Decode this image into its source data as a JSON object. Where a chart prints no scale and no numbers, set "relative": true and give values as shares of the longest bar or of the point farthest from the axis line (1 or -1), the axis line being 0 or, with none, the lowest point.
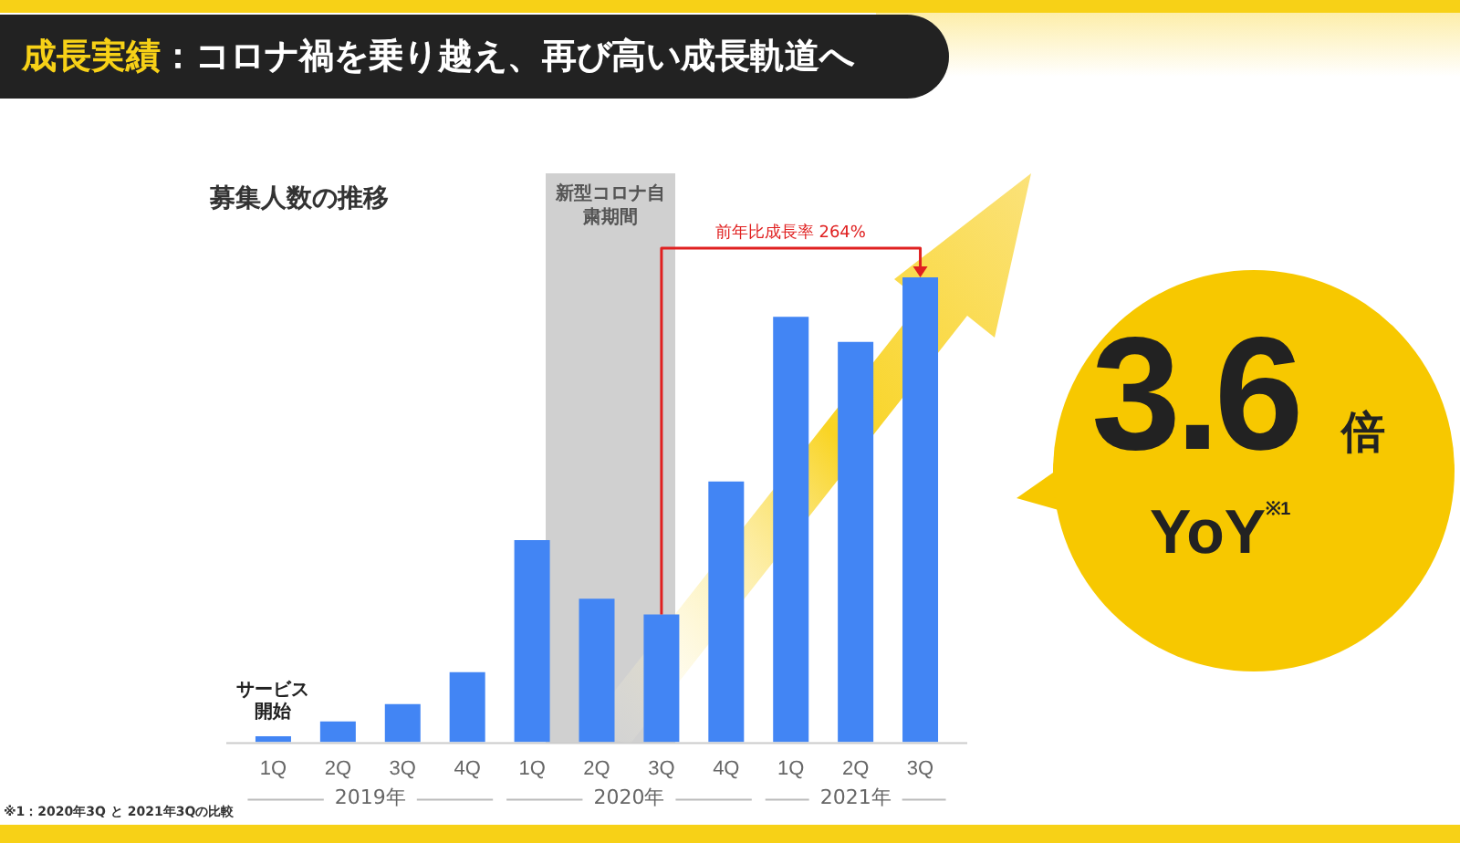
{
  "chart_data": {
    "type": "bar",
    "title": "成長実績：コロナ禍を乗り越え、再び高い成長軌道へ",
    "subtitle": "募集人数の推移",
    "categories": [
      "1Q",
      "2Q",
      "3Q",
      "4Q",
      "1Q",
      "2Q",
      "3Q",
      "4Q",
      "1Q",
      "2Q",
      "3Q"
    ],
    "values": [
      0.013,
      0.045,
      0.082,
      0.151,
      0.435,
      0.309,
      0.275,
      0.561,
      0.915,
      0.861,
      1
    ],
    "color": "#4285f4",
    "relative": true,
    "grid": false,
    "legend": false,
    "annotations": [
      "サービス開始",
      "前年比成長率 264%",
      "3.6",
      "倍",
      "YoY$^{※1}$",
      "※1：2020年3Q と 2021年3Qの比較",
      "新型コロナ自粛期間",
      "2019年",
      "2020年",
      "2021年"
    ]
  }
}
